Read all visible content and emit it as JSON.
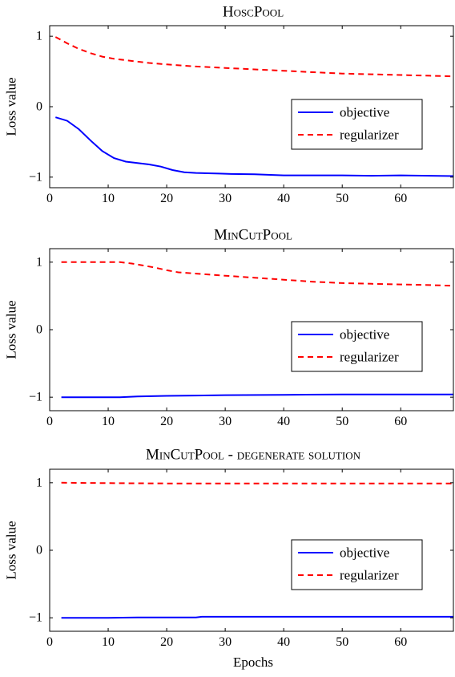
{
  "chart_data": [
    {
      "type": "line",
      "title": "HoscPool",
      "ylabel": "Loss value",
      "xlabel": "",
      "xlim": [
        0,
        69
      ],
      "ylim": [
        -1.15,
        1.15
      ],
      "xticks": [
        0,
        10,
        20,
        30,
        40,
        50,
        60
      ],
      "yticks": [
        1,
        0,
        -1
      ],
      "ytick_labels": [
        "1",
        "0",
        "−1"
      ],
      "legend": {
        "position": "center-right"
      },
      "series": [
        {
          "name": "objective",
          "color": "#0000ff",
          "dash": "solid",
          "x": [
            1,
            3,
            5,
            7,
            9,
            11,
            13,
            15,
            17,
            19,
            21,
            23,
            25,
            27,
            29,
            31,
            35,
            40,
            45,
            50,
            55,
            60,
            65,
            69
          ],
          "y": [
            -0.15,
            -0.2,
            -0.32,
            -0.48,
            -0.63,
            -0.73,
            -0.78,
            -0.8,
            -0.82,
            -0.85,
            -0.9,
            -0.93,
            -0.94,
            -0.945,
            -0.95,
            -0.955,
            -0.96,
            -0.975,
            -0.975,
            -0.975,
            -0.98,
            -0.975,
            -0.98,
            -0.985
          ]
        },
        {
          "name": "regularizer",
          "color": "#ff0000",
          "dash": "dashed",
          "x": [
            1,
            3,
            5,
            7,
            9,
            11,
            13,
            15,
            17,
            20,
            25,
            30,
            35,
            40,
            45,
            50,
            55,
            60,
            65,
            69
          ],
          "y": [
            0.99,
            0.9,
            0.82,
            0.76,
            0.71,
            0.68,
            0.66,
            0.64,
            0.62,
            0.6,
            0.57,
            0.55,
            0.53,
            0.51,
            0.49,
            0.47,
            0.46,
            0.45,
            0.44,
            0.43
          ]
        }
      ]
    },
    {
      "type": "line",
      "title": "MinCutPool",
      "ylabel": "Loss value",
      "xlabel": "",
      "xlim": [
        0,
        69
      ],
      "ylim": [
        -1.2,
        1.2
      ],
      "xticks": [
        0,
        10,
        20,
        30,
        40,
        50,
        60
      ],
      "yticks": [
        1,
        0,
        -1
      ],
      "ytick_labels": [
        "1",
        "0",
        "−1"
      ],
      "legend": {
        "position": "center-right"
      },
      "series": [
        {
          "name": "objective",
          "color": "#0000ff",
          "dash": "solid",
          "x": [
            2,
            5,
            10,
            12,
            15,
            20,
            25,
            30,
            40,
            50,
            60,
            69
          ],
          "y": [
            -1.0,
            -1.0,
            -1.0,
            -1.0,
            -0.99,
            -0.98,
            -0.975,
            -0.97,
            -0.965,
            -0.96,
            -0.96,
            -0.96
          ]
        },
        {
          "name": "regularizer",
          "color": "#ff0000",
          "dash": "dashed",
          "x": [
            2,
            5,
            10,
            12,
            14,
            16,
            18,
            20,
            22,
            25,
            30,
            35,
            40,
            45,
            50,
            55,
            60,
            65,
            69
          ],
          "y": [
            1.0,
            1.0,
            1.0,
            1.0,
            0.98,
            0.95,
            0.92,
            0.88,
            0.85,
            0.83,
            0.8,
            0.77,
            0.74,
            0.71,
            0.69,
            0.68,
            0.67,
            0.66,
            0.65
          ]
        }
      ]
    },
    {
      "type": "line",
      "title": "MinCutPool - degenerate solution",
      "ylabel": "Loss value",
      "xlabel": "Epochs",
      "xlim": [
        0,
        69
      ],
      "ylim": [
        -1.2,
        1.2
      ],
      "xticks": [
        0,
        10,
        20,
        30,
        40,
        50,
        60
      ],
      "yticks": [
        1,
        0,
        -1
      ],
      "ytick_labels": [
        "1",
        "0",
        "−1"
      ],
      "legend": {
        "position": "center-right"
      },
      "series": [
        {
          "name": "objective",
          "color": "#0000ff",
          "dash": "solid",
          "x": [
            2,
            10,
            15,
            20,
            25,
            26,
            30,
            40,
            50,
            60,
            69
          ],
          "y": [
            -1.0,
            -1.0,
            -0.995,
            -0.995,
            -0.995,
            -0.985,
            -0.985,
            -0.985,
            -0.985,
            -0.985,
            -0.985
          ]
        },
        {
          "name": "regularizer",
          "color": "#ff0000",
          "dash": "dashed",
          "x": [
            2,
            10,
            20,
            30,
            40,
            50,
            60,
            69
          ],
          "y": [
            1.0,
            0.995,
            0.99,
            0.99,
            0.99,
            0.99,
            0.99,
            0.99
          ]
        }
      ]
    }
  ]
}
